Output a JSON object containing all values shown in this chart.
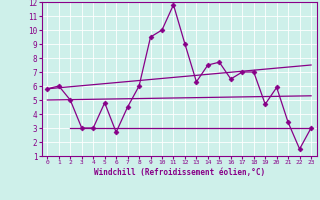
{
  "xlabel": "Windchill (Refroidissement éolien,°C)",
  "xlim": [
    -0.5,
    23.5
  ],
  "ylim": [
    1,
    12
  ],
  "xticks": [
    0,
    1,
    2,
    3,
    4,
    5,
    6,
    7,
    8,
    9,
    10,
    11,
    12,
    13,
    14,
    15,
    16,
    17,
    18,
    19,
    20,
    21,
    22,
    23
  ],
  "yticks": [
    1,
    2,
    3,
    4,
    5,
    6,
    7,
    8,
    9,
    10,
    11,
    12
  ],
  "bg_color": "#cef0ea",
  "grid_color": "#ffffff",
  "line_color": "#880088",
  "line1_x": [
    0,
    1,
    2,
    3,
    4,
    5,
    6,
    7,
    8,
    9,
    10,
    11,
    12,
    13,
    14,
    15,
    16,
    17,
    18,
    19,
    20,
    21,
    22,
    23
  ],
  "line1_y": [
    5.8,
    6.0,
    5.0,
    3.0,
    3.0,
    4.8,
    2.7,
    4.5,
    6.0,
    9.5,
    10.0,
    11.8,
    9.0,
    6.3,
    7.5,
    7.7,
    6.5,
    7.0,
    7.0,
    4.7,
    5.9,
    3.4,
    1.5,
    3.0
  ],
  "line2_x": [
    2,
    23
  ],
  "line2_y": [
    3.0,
    3.0
  ],
  "line3_x": [
    0,
    23
  ],
  "line3_y": [
    5.0,
    5.3
  ],
  "line4_x": [
    0,
    23
  ],
  "line4_y": [
    5.8,
    7.5
  ]
}
